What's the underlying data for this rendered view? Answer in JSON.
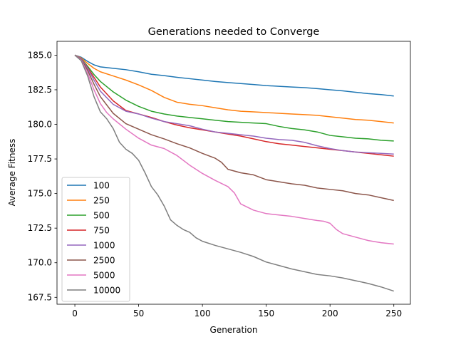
{
  "chart_data": {
    "type": "line",
    "title": "Generations needed to Converge",
    "xlabel": "Generation",
    "ylabel": "Average Fitness",
    "xlim": [
      -14,
      263
    ],
    "ylim": [
      167.0,
      186.0
    ],
    "xticks": [
      0,
      50,
      100,
      150,
      200,
      250
    ],
    "yticks": [
      167.5,
      170.0,
      172.5,
      175.0,
      177.5,
      180.0,
      182.5,
      185.0
    ],
    "grid": false,
    "legend": "lower-left",
    "series": [
      {
        "name": "100",
        "color": "#1f77b4",
        "x": [
          0,
          5,
          10,
          15,
          20,
          30,
          40,
          50,
          60,
          70,
          80,
          90,
          100,
          110,
          120,
          130,
          140,
          150,
          160,
          170,
          180,
          190,
          200,
          210,
          220,
          230,
          240,
          250
        ],
        "y": [
          185.0,
          184.85,
          184.55,
          184.3,
          184.15,
          184.05,
          183.95,
          183.8,
          183.62,
          183.52,
          183.4,
          183.3,
          183.2,
          183.1,
          183.02,
          182.95,
          182.88,
          182.8,
          182.75,
          182.7,
          182.65,
          182.58,
          182.5,
          182.42,
          182.32,
          182.22,
          182.15,
          182.05
        ]
      },
      {
        "name": "250",
        "color": "#ff7f0e",
        "x": [
          0,
          5,
          10,
          15,
          20,
          30,
          40,
          50,
          60,
          70,
          80,
          90,
          100,
          110,
          120,
          130,
          140,
          150,
          160,
          170,
          180,
          190,
          200,
          210,
          220,
          230,
          240,
          250
        ],
        "y": [
          185.0,
          184.8,
          184.4,
          184.05,
          183.8,
          183.5,
          183.2,
          182.85,
          182.45,
          181.95,
          181.6,
          181.45,
          181.35,
          181.2,
          181.05,
          180.95,
          180.9,
          180.85,
          180.8,
          180.75,
          180.7,
          180.65,
          180.55,
          180.45,
          180.35,
          180.3,
          180.2,
          180.1
        ]
      },
      {
        "name": "500",
        "color": "#2ca02c",
        "x": [
          0,
          5,
          10,
          15,
          20,
          30,
          40,
          50,
          60,
          70,
          80,
          90,
          100,
          110,
          120,
          130,
          140,
          150,
          160,
          170,
          180,
          190,
          200,
          210,
          220,
          230,
          240,
          250
        ],
        "y": [
          185.0,
          184.75,
          184.2,
          183.6,
          183.1,
          182.35,
          181.75,
          181.3,
          180.95,
          180.75,
          180.6,
          180.5,
          180.4,
          180.3,
          180.2,
          180.15,
          180.1,
          180.05,
          179.85,
          179.7,
          179.6,
          179.45,
          179.2,
          179.1,
          179.0,
          178.95,
          178.85,
          178.8
        ]
      },
      {
        "name": "750",
        "color": "#d62728",
        "x": [
          0,
          5,
          10,
          15,
          20,
          30,
          40,
          50,
          60,
          70,
          80,
          90,
          100,
          110,
          120,
          130,
          140,
          150,
          160,
          170,
          180,
          190,
          200,
          210,
          220,
          230,
          240,
          250
        ],
        "y": [
          185.0,
          184.75,
          184.1,
          183.4,
          182.7,
          181.7,
          181.0,
          180.75,
          180.5,
          180.2,
          179.95,
          179.75,
          179.6,
          179.45,
          179.3,
          179.15,
          178.95,
          178.75,
          178.6,
          178.5,
          178.4,
          178.3,
          178.2,
          178.1,
          178.0,
          177.9,
          177.8,
          177.7
        ]
      },
      {
        "name": "1000",
        "color": "#9467bd",
        "x": [
          0,
          5,
          10,
          15,
          20,
          30,
          40,
          50,
          60,
          70,
          80,
          90,
          100,
          110,
          120,
          130,
          140,
          150,
          160,
          170,
          180,
          190,
          200,
          210,
          220,
          230,
          240,
          250
        ],
        "y": [
          185.0,
          184.75,
          184.05,
          183.2,
          182.4,
          181.45,
          180.95,
          180.75,
          180.45,
          180.2,
          180.05,
          179.9,
          179.65,
          179.45,
          179.35,
          179.25,
          179.15,
          179.0,
          178.9,
          178.85,
          178.7,
          178.45,
          178.25,
          178.1,
          178.0,
          177.95,
          177.9,
          177.85
        ]
      },
      {
        "name": "2500",
        "color": "#8c564b",
        "x": [
          0,
          5,
          10,
          15,
          20,
          30,
          40,
          50,
          60,
          70,
          80,
          90,
          100,
          110,
          115,
          120,
          130,
          140,
          150,
          160,
          170,
          180,
          190,
          200,
          210,
          220,
          230,
          240,
          250
        ],
        "y": [
          185.0,
          184.7,
          183.9,
          182.9,
          182.0,
          180.8,
          180.05,
          179.65,
          179.25,
          178.95,
          178.6,
          178.3,
          177.9,
          177.55,
          177.25,
          176.75,
          176.5,
          176.35,
          176.0,
          175.85,
          175.7,
          175.6,
          175.4,
          175.3,
          175.2,
          175.0,
          174.9,
          174.7,
          174.5
        ]
      },
      {
        "name": "5000",
        "color": "#e377c2",
        "x": [
          0,
          5,
          10,
          15,
          20,
          25,
          30,
          40,
          50,
          60,
          70,
          80,
          90,
          100,
          110,
          120,
          125,
          130,
          140,
          150,
          160,
          170,
          180,
          190,
          195,
          200,
          205,
          210,
          220,
          230,
          240,
          250
        ],
        "y": [
          185.0,
          184.65,
          183.7,
          182.5,
          181.5,
          180.85,
          180.4,
          179.65,
          179.0,
          178.5,
          178.25,
          177.75,
          177.05,
          176.45,
          175.95,
          175.5,
          175.05,
          174.25,
          173.8,
          173.55,
          173.45,
          173.35,
          173.2,
          173.05,
          173.0,
          172.85,
          172.4,
          172.1,
          171.85,
          171.6,
          171.45,
          171.35
        ]
      },
      {
        "name": "10000",
        "color": "#7f7f7f",
        "x": [
          0,
          5,
          10,
          15,
          20,
          25,
          30,
          35,
          40,
          45,
          50,
          55,
          60,
          65,
          70,
          75,
          80,
          85,
          90,
          95,
          100,
          110,
          120,
          130,
          140,
          150,
          160,
          170,
          180,
          190,
          200,
          210,
          220,
          230,
          240,
          250
        ],
        "y": [
          185.0,
          184.6,
          183.5,
          182.0,
          180.9,
          180.4,
          179.7,
          178.7,
          178.2,
          177.9,
          177.4,
          176.5,
          175.5,
          174.9,
          174.1,
          173.1,
          172.7,
          172.4,
          172.2,
          171.8,
          171.55,
          171.25,
          171.0,
          170.75,
          170.45,
          170.05,
          169.8,
          169.55,
          169.35,
          169.15,
          169.05,
          168.9,
          168.7,
          168.5,
          168.25,
          167.95
        ]
      }
    ]
  }
}
